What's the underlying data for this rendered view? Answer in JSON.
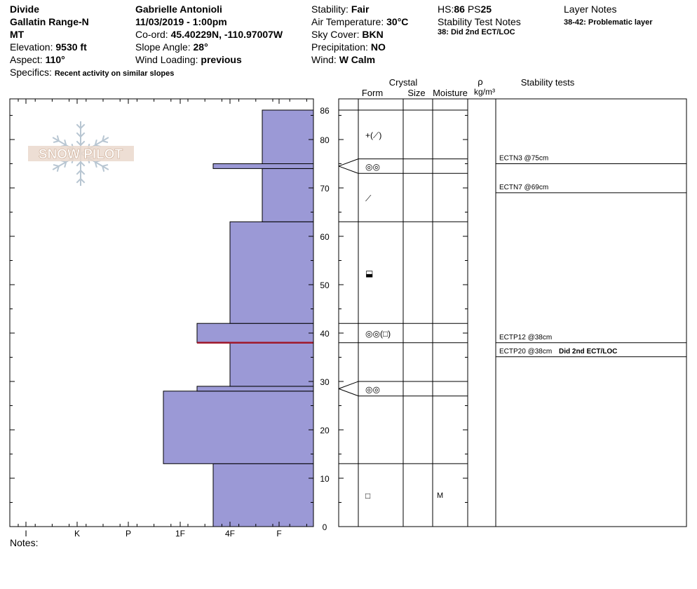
{
  "header": {
    "location": "Divide",
    "range": "Gallatin Range-N",
    "state": "MT",
    "elevation_label": "Elevation:",
    "elevation": "9530 ft",
    "aspect_label": "Aspect:",
    "aspect": "110°",
    "specifics_label": "Specifics:",
    "specifics": "Recent activity on similar slopes",
    "observer": "Gabrielle Antonioli",
    "datetime": "11/03/2019 - 1:00pm",
    "coord_label": "Co-ord:",
    "coord": "45.40229N, -110.97007W",
    "slope_label": "Slope Angle:",
    "slope": "28°",
    "wind_loading_label": "Wind Loading:",
    "wind_loading": "previous",
    "stability_label": "Stability:",
    "stability": "Fair",
    "air_temp_label": "Air Temperature:",
    "air_temp": "30°C",
    "sky_label": "Sky Cover:",
    "sky": "BKN",
    "precip_label": "Precipitation:",
    "precip": "NO",
    "wind_label": "Wind:",
    "wind": "W Calm",
    "hs_label": "HS:",
    "hs": "86",
    "ps_label": "PS",
    "ps": "25",
    "stn_title": "Stability Test Notes",
    "stn_note": "38: Did 2nd ECT/LOC",
    "layer_title": "Layer Notes",
    "layer_note": "38-42: Problematic layer"
  },
  "columns": {
    "crystal": "Crystal",
    "form": "Form",
    "size": "Size",
    "moisture": "Moisture",
    "rho": "ρ",
    "density_unit": "kg/m³",
    "stability_tests": "Stability tests"
  },
  "notes_label": "Notes:",
  "logo_text": "SNOW PILOT",
  "colors": {
    "layer_fill": "#9b99d6",
    "weak_layer": "#a0182a"
  },
  "chart_data": {
    "type": "snow_profile",
    "y_axis": {
      "min": 0,
      "max": 86,
      "major_ticks": [
        0,
        10,
        20,
        30,
        40,
        50,
        60,
        70,
        80
      ],
      "top_label": "86"
    },
    "hardness_scale": [
      "I",
      "K",
      "P",
      "1F",
      "4F",
      "F"
    ],
    "hardness_layers": [
      {
        "from": 0,
        "to": 13,
        "hardness": "4F+"
      },
      {
        "from": 13,
        "to": 28,
        "hardness": "1F+"
      },
      {
        "from": 28,
        "to": 29,
        "hardness": "1F-"
      },
      {
        "from": 29,
        "to": 38,
        "hardness": "4F"
      },
      {
        "from": 38,
        "to": 42,
        "hardness": "1F-"
      },
      {
        "from": 42,
        "to": 63,
        "hardness": "4F"
      },
      {
        "from": 63,
        "to": 74,
        "hardness": "F+"
      },
      {
        "from": 74,
        "to": 75,
        "hardness": "4F+"
      },
      {
        "from": 75,
        "to": 86,
        "hardness": "F+"
      }
    ],
    "weak_layer_depth": 38,
    "crystal_layers": [
      {
        "from": 0,
        "to": 13,
        "form": "□",
        "moisture": "M"
      },
      {
        "from": 13,
        "to": 27,
        "form": "",
        "moisture": ""
      },
      {
        "from": 27,
        "to": 30,
        "form": "◎◎",
        "moisture": ""
      },
      {
        "from": 30,
        "to": 38,
        "form": "",
        "moisture": ""
      },
      {
        "from": 38,
        "to": 42,
        "form": "◎◎(□)",
        "moisture": ""
      },
      {
        "from": 42,
        "to": 63,
        "form": "⬓",
        "moisture": ""
      },
      {
        "from": 63,
        "to": 73,
        "form": "⟋",
        "moisture": ""
      },
      {
        "from": 73,
        "to": 76,
        "form": "◎◎",
        "moisture": ""
      },
      {
        "from": 76,
        "to": 86,
        "form": "+(⟋)",
        "moisture": ""
      }
    ],
    "stability_tests": [
      {
        "depth": 75,
        "result": "ECTN3 @75cm",
        "comment": ""
      },
      {
        "depth": 69,
        "result": "ECTN7 @69cm",
        "comment": ""
      },
      {
        "depth": 38,
        "result": "ECTP12 @38cm",
        "comment": ""
      },
      {
        "depth": 38,
        "result": "ECTP20 @38cm",
        "comment": "Did 2nd ECT/LOC"
      }
    ]
  }
}
